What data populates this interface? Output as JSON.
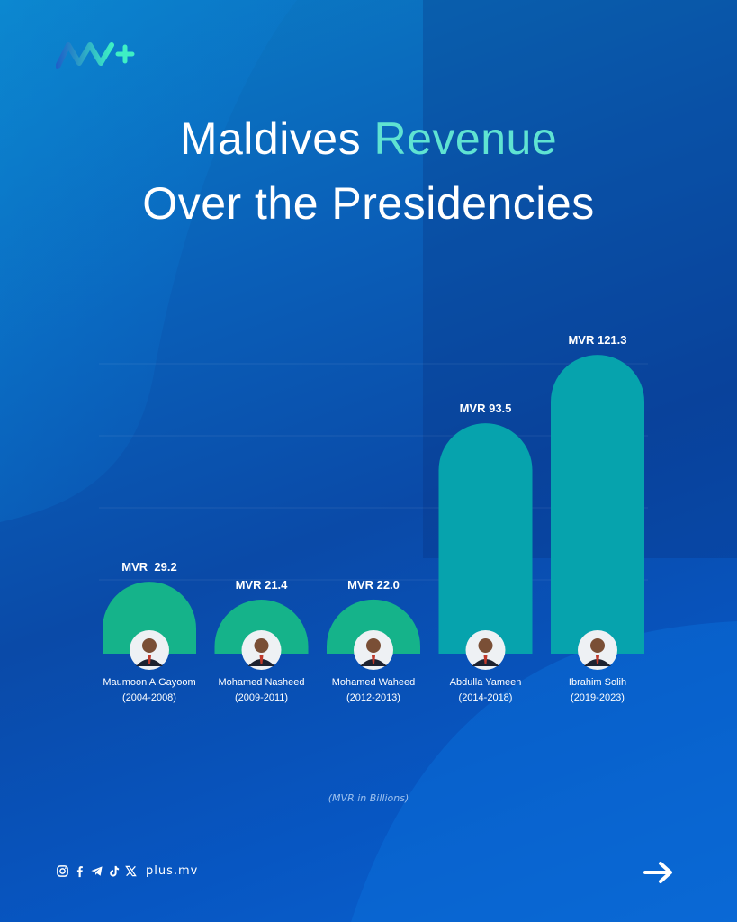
{
  "brand": {
    "logo_text": "M+",
    "website": "plus.mv"
  },
  "title": {
    "line1_a": "Maldives ",
    "line1_b": "Revenue",
    "line2": "Over the Presidencies"
  },
  "footnote": "(MVR in Billions)",
  "socials": [
    "instagram-icon",
    "facebook-icon",
    "telegram-icon",
    "tiktok-icon",
    "x-icon"
  ],
  "colors": {
    "accent": "#5fe3d2",
    "bar_green": "#15b38a",
    "bar_teal": "#06a3ad",
    "bg": "#0a4aa8"
  },
  "chart_data": {
    "type": "bar",
    "title": "Maldives Revenue Over the Presidencies",
    "unit": "MVR in Billions",
    "ylim": [
      0,
      125
    ],
    "categories": [
      "Maumoon A.Gayoom",
      "Mohamed Nasheed",
      "Mohamed Waheed",
      "Abdulla Yameen",
      "Ibrahim Solih"
    ],
    "periods": [
      "(2004-2008)",
      "(2009-2011)",
      "(2012-2013)",
      "(2014-2018)",
      "(2019-2023)"
    ],
    "values": [
      29.2,
      21.4,
      22.0,
      93.5,
      121.3
    ],
    "value_labels": [
      "MVR  29.2",
      "MVR 21.4",
      "MVR 22.0",
      "MVR 93.5",
      "MVR 121.3"
    ]
  }
}
